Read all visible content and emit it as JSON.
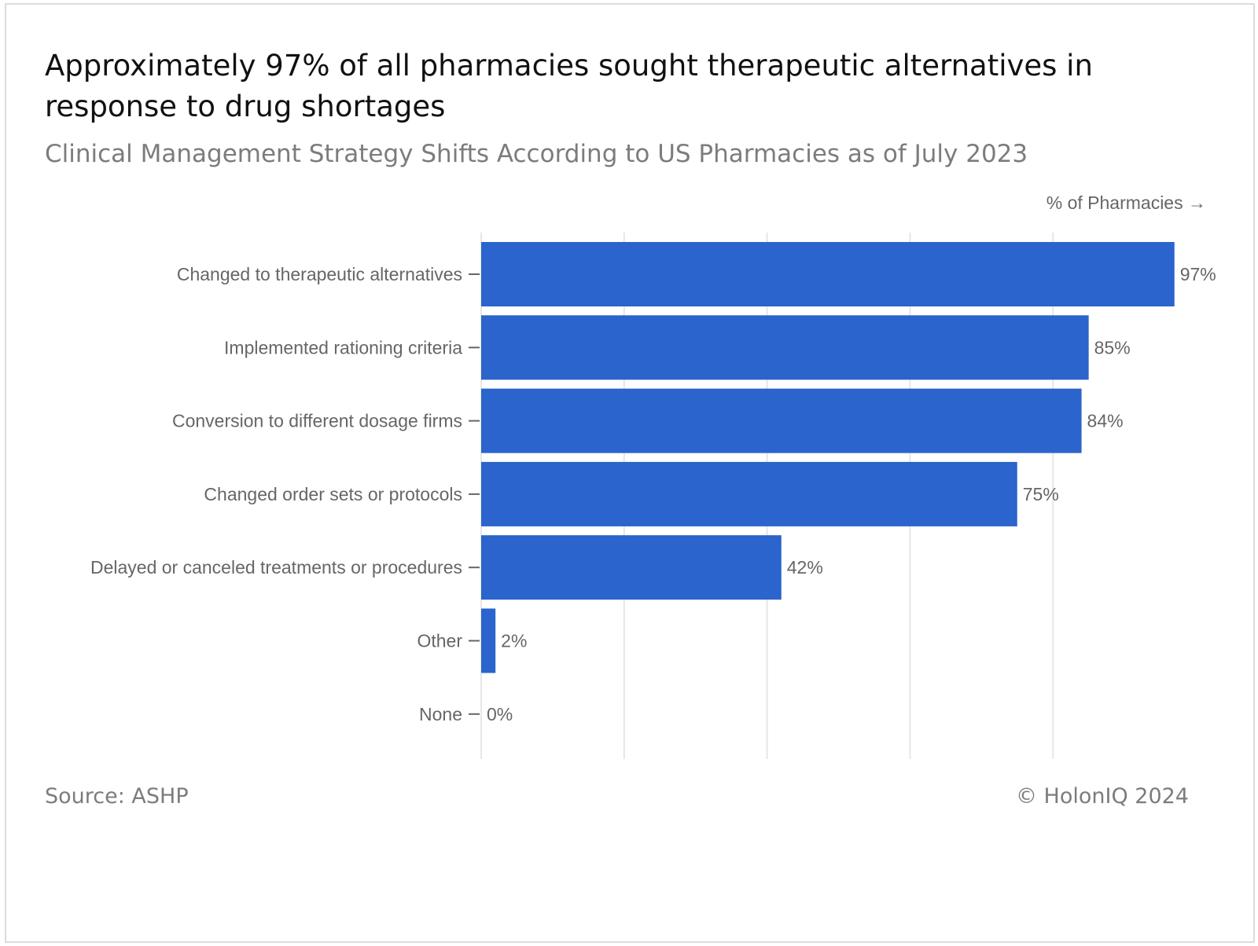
{
  "header": {
    "title": "Approximately 97% of all pharmacies sought therapeutic alternatives in response to drug shortages",
    "subtitle": "Clinical Management Strategy Shifts According to US Pharmacies as of July 2023"
  },
  "footer": {
    "source": "Source: ASHP",
    "copyright": "© HolonIQ 2024"
  },
  "chart_data": {
    "type": "bar",
    "orientation": "horizontal",
    "title": "Approximately 97% of all pharmacies sought therapeutic alternatives in response to drug shortages",
    "subtitle": "Clinical Management Strategy Shifts According to US Pharmacies as of July 2023",
    "xlabel": "% of Pharmacies →",
    "ylabel": "",
    "categories": [
      "Changed to therapeutic alternatives",
      "Implemented rationing criteria",
      "Conversion to different dosage firms",
      "Changed order sets or protocols",
      "Delayed or canceled treatments or procedures",
      "Other",
      "None"
    ],
    "values": [
      97,
      85,
      84,
      75,
      42,
      2,
      0
    ],
    "data_labels": [
      "97%",
      "85%",
      "84%",
      "75%",
      "42%",
      "2%",
      "0%"
    ],
    "xlim": [
      0,
      100
    ],
    "gridlines": [
      0,
      20,
      40,
      60,
      80
    ],
    "grid": true,
    "legend": false,
    "colors": {
      "bar": "#2a64cc",
      "grid": "#e6e6e6",
      "label": "#666666"
    }
  }
}
